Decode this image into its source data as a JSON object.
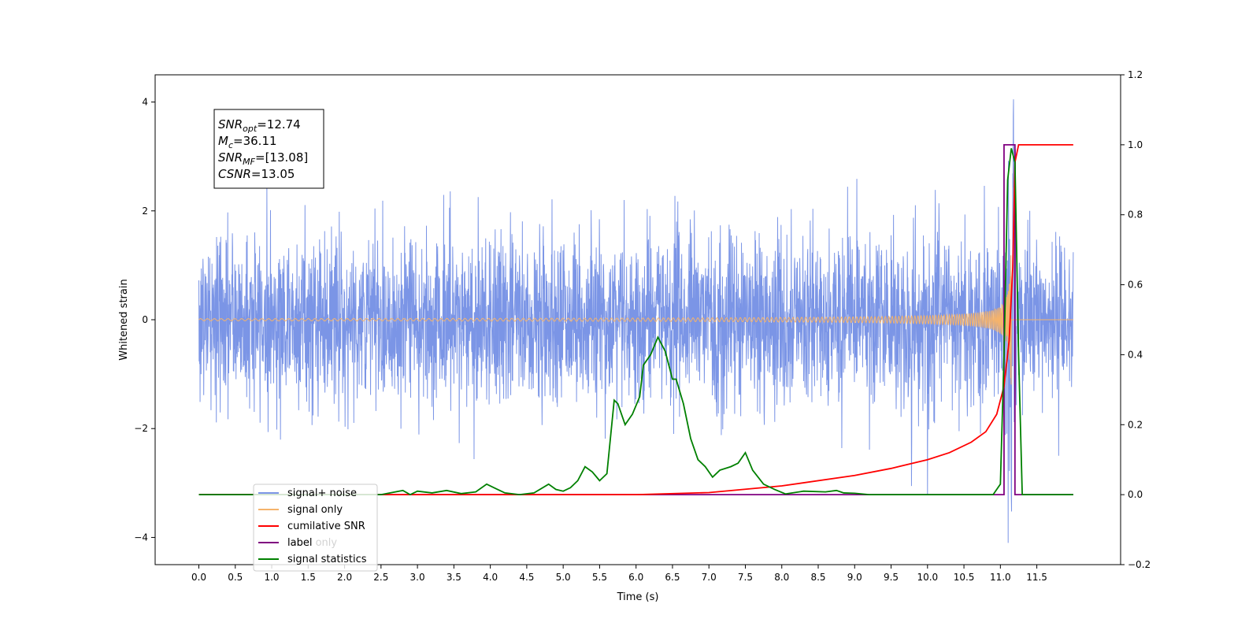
{
  "chart_data": {
    "type": "line",
    "xlabel": "Time (s)",
    "ylabel": "Whitened strain",
    "xlim": [
      -0.6,
      12.65
    ],
    "ylim": [
      -4.5,
      4.5
    ],
    "y2lim": [
      -0.2,
      1.2
    ],
    "x_ticks": [
      0.0,
      0.5,
      1.0,
      1.5,
      2.0,
      2.5,
      3.0,
      3.5,
      4.0,
      4.5,
      5.0,
      5.5,
      6.0,
      6.5,
      7.0,
      7.5,
      8.0,
      8.5,
      9.0,
      9.5,
      10.0,
      10.5,
      11.0,
      11.5
    ],
    "x_tick_labels": [
      "0.0",
      "0.5",
      "1.0",
      "1.5",
      "2.0",
      "2.5",
      "3.0",
      "3.5",
      "4.0",
      "4.5",
      "5.0",
      "5.5",
      "6.0",
      "6.5",
      "7.0",
      "7.5",
      "8.0",
      "8.5",
      "9.0",
      "9.5",
      "10.0",
      "10.5",
      "11.0",
      "11.5"
    ],
    "y_ticks": [
      -4,
      -2,
      0,
      2,
      4
    ],
    "y_tick_labels": [
      "−4",
      "−2",
      "0",
      "2",
      "4"
    ],
    "y2_ticks": [
      -0.2,
      0.0,
      0.2,
      0.4,
      0.6,
      0.8,
      1.0,
      1.2
    ],
    "y2_tick_labels": [
      "−0.2",
      "0.0",
      "0.2",
      "0.4",
      "0.6",
      "0.8",
      "1.0",
      "1.2"
    ],
    "grid": false,
    "legend_position": "lower-left",
    "annotation": {
      "lines": [
        {
          "base": "SNR",
          "sub": "opt",
          "value": "=12.74"
        },
        {
          "base": "M",
          "sub": "c",
          "value": "=36.11"
        },
        {
          "base": "SNR",
          "sub": "MF",
          "value": "=[13.08]"
        },
        {
          "base": "CSNR",
          "sub": "",
          "value": "=13.05"
        }
      ]
    },
    "series": [
      {
        "name": "signal+ noise",
        "axis": "left",
        "color": "#7b95e6",
        "description_values": {
          "x_start": 0.0,
          "x_end": 12.0,
          "typical_range": [
            -1.7,
            1.7
          ],
          "extremes": [
            -4.1,
            4.05
          ]
        }
      },
      {
        "name": "signal only",
        "axis": "left",
        "color": "#f5b36b",
        "description_values": {
          "x_start": 0.0,
          "x_end": 12.0,
          "chirp_peak_time": 11.15,
          "peak_amplitude": 1.2
        }
      },
      {
        "name": "cumilative SNR",
        "axis": "right",
        "color": "#ff0000",
        "x": [
          0.0,
          6.0,
          7.0,
          8.0,
          9.0,
          9.5,
          10.0,
          10.3,
          10.6,
          10.8,
          10.95,
          11.05,
          11.12,
          11.17,
          11.2,
          11.25,
          12.0
        ],
        "y": [
          0.0,
          0.0,
          0.006,
          0.025,
          0.055,
          0.075,
          0.1,
          0.12,
          0.15,
          0.18,
          0.23,
          0.31,
          0.44,
          0.65,
          0.95,
          1.0,
          1.0
        ]
      },
      {
        "name": "label",
        "axis": "right",
        "color": "#800080",
        "x": [
          0.0,
          11.05,
          11.05,
          11.2,
          11.2,
          12.0
        ],
        "y": [
          0.0,
          0.0,
          1.0,
          1.0,
          0.0,
          0.0
        ]
      },
      {
        "name": "label only",
        "axis": "right",
        "color": "#f5b36b",
        "hidden_by_legend_overlap": true
      },
      {
        "name": "signal statistics",
        "axis": "right",
        "color": "#008000",
        "x": [
          0.0,
          2.5,
          2.8,
          2.9,
          3.0,
          3.2,
          3.4,
          3.6,
          3.8,
          3.95,
          4.05,
          4.2,
          4.4,
          4.6,
          4.8,
          4.9,
          5.0,
          5.1,
          5.2,
          5.3,
          5.4,
          5.5,
          5.6,
          5.7,
          5.75,
          5.85,
          5.95,
          6.05,
          6.1,
          6.2,
          6.3,
          6.4,
          6.5,
          6.55,
          6.65,
          6.75,
          6.85,
          6.95,
          7.05,
          7.15,
          7.3,
          7.4,
          7.5,
          7.6,
          7.75,
          7.9,
          8.05,
          8.3,
          8.6,
          8.75,
          8.85,
          9.0,
          9.2,
          9.6,
          10.0,
          10.5,
          10.9,
          11.0,
          11.05,
          11.1,
          11.15,
          11.2,
          11.25,
          11.3,
          12.0
        ],
        "y": [
          0.0,
          0.0,
          0.012,
          0.0,
          0.01,
          0.005,
          0.012,
          0.003,
          0.008,
          0.03,
          0.02,
          0.005,
          0.0,
          0.005,
          0.03,
          0.015,
          0.01,
          0.02,
          0.04,
          0.08,
          0.065,
          0.04,
          0.06,
          0.27,
          0.26,
          0.2,
          0.23,
          0.28,
          0.37,
          0.4,
          0.45,
          0.41,
          0.33,
          0.33,
          0.26,
          0.16,
          0.1,
          0.08,
          0.05,
          0.07,
          0.08,
          0.09,
          0.12,
          0.07,
          0.03,
          0.015,
          0.002,
          0.01,
          0.008,
          0.012,
          0.005,
          0.004,
          0.0,
          0.0,
          0.0,
          0.0,
          0.0,
          0.03,
          0.4,
          0.9,
          0.99,
          0.95,
          0.4,
          0.0,
          0.0
        ]
      }
    ]
  }
}
